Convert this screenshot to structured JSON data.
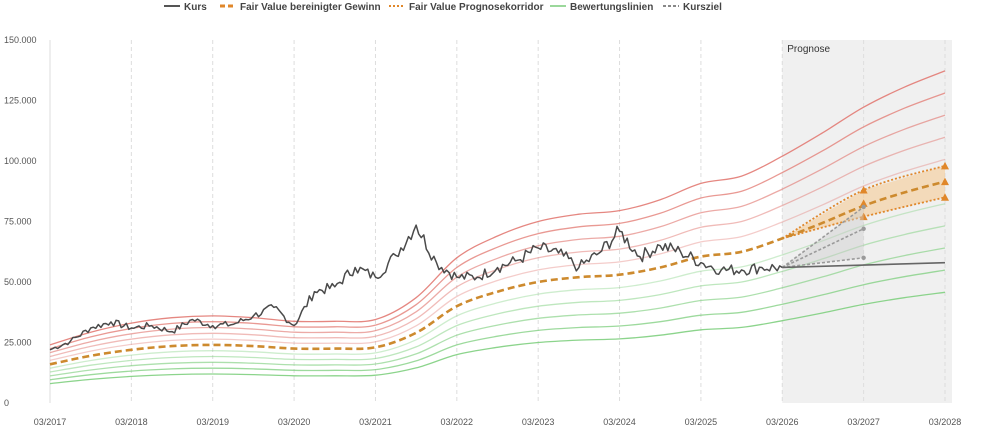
{
  "legend": [
    {
      "label": "Kurs",
      "color": "#555555",
      "style": "solid"
    },
    {
      "label": "Fair Value bereinigter Gewinn",
      "color": "#e0872a",
      "style": "dashed"
    },
    {
      "label": "Fair Value Prognosekorridor",
      "color": "#e0872a",
      "style": "dotted"
    },
    {
      "label": "Bewertungslinien",
      "color": "#9bd89b",
      "style": "solid"
    },
    {
      "label": "Kursziel",
      "color": "#888888",
      "style": "dashed"
    }
  ],
  "forecast_label": "Prognose",
  "colors": {
    "kurs": "#4a4a4a",
    "fair_value": "#cd8a2e",
    "corridor": "#e0872a",
    "corridor_fill": "#f6c98e",
    "upper_line": "#e27a73",
    "lower_line": "#7fcf7f",
    "target": "#9a9a9a",
    "forecast_bg": "#f0f0f0",
    "grid": "#dddddd"
  },
  "chart_data": {
    "type": "line",
    "x_domain": [
      "2017-03",
      "2028-03"
    ],
    "ylim": [
      0,
      150000
    ],
    "y_ticks": [
      {
        "value": 0,
        "label": "0"
      },
      {
        "value": 25000,
        "label": "25.000"
      },
      {
        "value": 50000,
        "label": "50.000"
      },
      {
        "value": 75000,
        "label": "75.000"
      },
      {
        "value": 100000,
        "label": "100.000"
      },
      {
        "value": 125000,
        "label": "125.000"
      },
      {
        "value": 150000,
        "label": "150.000"
      }
    ],
    "x_ticks": [
      {
        "value": "2017-03",
        "label": "03/2017"
      },
      {
        "value": "2018-03",
        "label": "03/2018"
      },
      {
        "value": "2019-03",
        "label": "03/2019"
      },
      {
        "value": "2020-03",
        "label": "03/2020"
      },
      {
        "value": "2021-03",
        "label": "03/2021"
      },
      {
        "value": "2022-03",
        "label": "03/2022"
      },
      {
        "value": "2023-03",
        "label": "03/2023"
      },
      {
        "value": "2024-03",
        "label": "03/2024"
      },
      {
        "value": "2025-03",
        "label": "03/2025"
      },
      {
        "value": "2026-03",
        "label": "03/2026"
      },
      {
        "value": "2027-03",
        "label": "03/2027"
      },
      {
        "value": "2028-03",
        "label": "03/2028"
      }
    ],
    "forecast_start": "2026-03",
    "fair_value": {
      "x": [
        "2017-03",
        "2017-09",
        "2018-03",
        "2018-09",
        "2019-03",
        "2019-09",
        "2020-03",
        "2020-09",
        "2021-03",
        "2021-09",
        "2022-03",
        "2022-09",
        "2023-03",
        "2023-09",
        "2024-03",
        "2024-09",
        "2025-03",
        "2025-09",
        "2026-03",
        "2026-09",
        "2027-03",
        "2027-09",
        "2028-03"
      ],
      "values": [
        16000,
        19500,
        22000,
        23500,
        24000,
        23500,
        22500,
        22500,
        23000,
        29000,
        40000,
        46000,
        50000,
        52000,
        53000,
        56000,
        60500,
        62500,
        68000,
        74500,
        81500,
        87000,
        91500
      ]
    },
    "valuation_multipliers": [
      0.5,
      0.6,
      0.7,
      0.8,
      0.9,
      1.1,
      1.2,
      1.3,
      1.4,
      1.5
    ],
    "corridor": {
      "x": [
        "2026-03",
        "2027-03",
        "2028-03"
      ],
      "lower": [
        68000,
        77000,
        85000
      ],
      "upper": [
        68000,
        88000,
        98000
      ],
      "mid": [
        68000,
        82500,
        91500
      ]
    },
    "kurs": {
      "x": [
        "2017-03",
        "2017-06",
        "2017-09",
        "2017-12",
        "2018-03",
        "2018-06",
        "2018-09",
        "2018-12",
        "2019-03",
        "2019-06",
        "2019-09",
        "2019-12",
        "2020-03",
        "2020-06",
        "2020-09",
        "2020-12",
        "2021-03",
        "2021-06",
        "2021-09",
        "2021-12",
        "2022-03",
        "2022-06",
        "2022-09",
        "2022-12",
        "2023-03",
        "2023-06",
        "2023-09",
        "2023-12",
        "2024-03",
        "2024-06",
        "2024-09",
        "2024-12",
        "2025-03",
        "2025-06",
        "2025-09",
        "2025-12",
        "2026-03"
      ],
      "values": [
        22000,
        25500,
        31000,
        33500,
        31000,
        32000,
        29500,
        34500,
        32000,
        32500,
        36000,
        39500,
        32000,
        46000,
        48000,
        56000,
        52000,
        61000,
        73500,
        58000,
        52000,
        52000,
        56000,
        59000,
        64000,
        62000,
        56000,
        62000,
        71000,
        60500,
        65000,
        62500,
        58000,
        55000,
        55000,
        56000,
        56000
      ]
    },
    "kursziel": {
      "start": {
        "x": "2026-03",
        "y": 56000
      },
      "lines": [
        {
          "x": "2027-03",
          "y": 81000
        },
        {
          "x": "2027-03",
          "y": 72000
        },
        {
          "x": "2027-03",
          "y": 60000
        }
      ],
      "flat": {
        "x": "2028-03",
        "y": 58000
      }
    }
  }
}
